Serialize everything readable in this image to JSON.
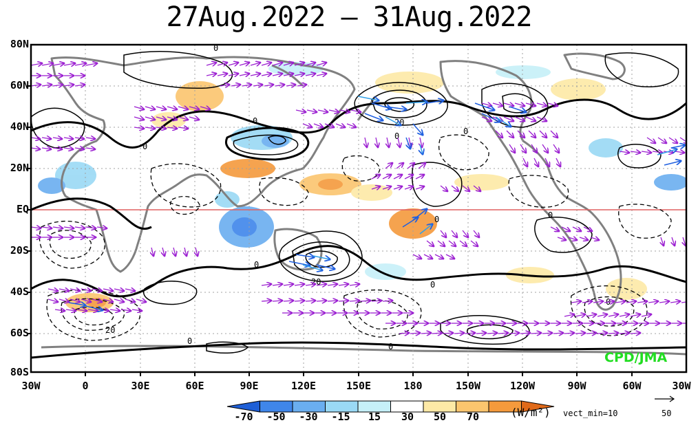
{
  "title": "27Aug.2022 – 31Aug.2022",
  "map": {
    "lat_labels": [
      "80N",
      "60N",
      "40N",
      "20N",
      "EQ",
      "20S",
      "40S",
      "60S",
      "80S"
    ],
    "lon_labels": [
      "30W",
      "0",
      "30E",
      "60E",
      "90E",
      "120E",
      "150E",
      "180",
      "150W",
      "120W",
      "90W",
      "60W",
      "30W"
    ],
    "contour_labels": [
      "0",
      "0",
      "0",
      "20",
      "0",
      "0",
      "0",
      "0",
      "20",
      "0",
      "0",
      "0",
      "20",
      "0",
      "0"
    ],
    "equator_color": "#e06060",
    "credit": "CPD/JMA"
  },
  "colorbar": {
    "labels": [
      "-70",
      "-50",
      "-30",
      "-15",
      "15",
      "30",
      "50",
      "70"
    ],
    "colors": [
      "#1f5fd6",
      "#3f86ea",
      "#6aaef0",
      "#9ad9f5",
      "#c6f0f8",
      "#ffffff",
      "#fde9a6",
      "#fbc56e",
      "#f59a3c",
      "#e06a1a"
    ],
    "units": "(W/m²)",
    "vect_min": "vect_min=10",
    "ref_vector": "50"
  }
}
